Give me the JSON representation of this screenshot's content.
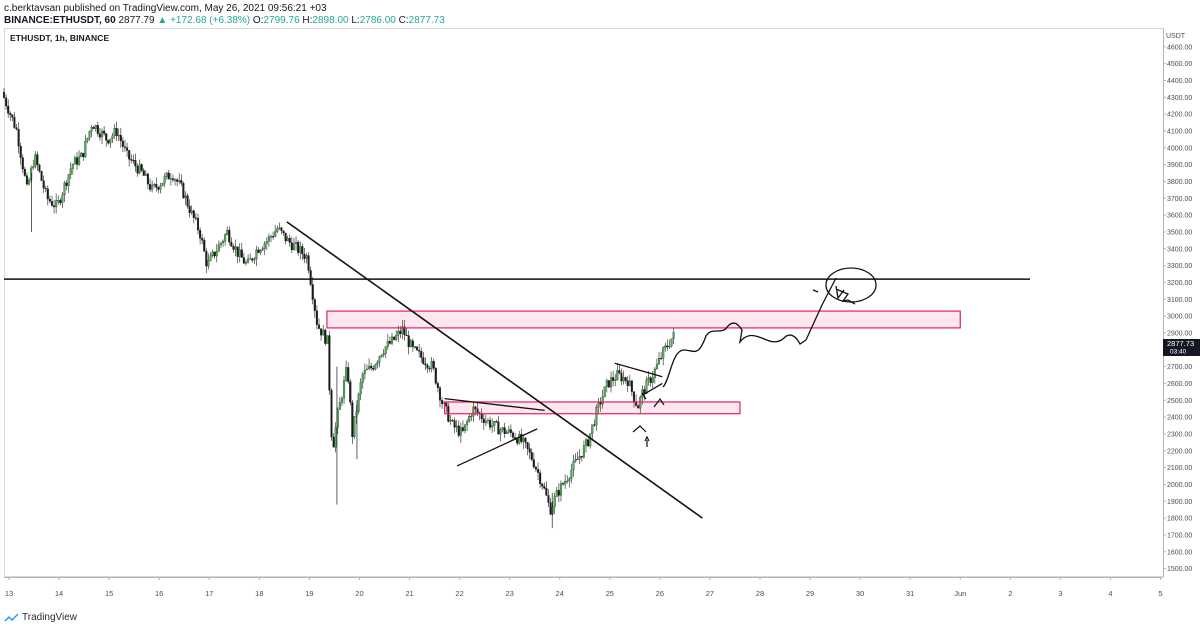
{
  "header": {
    "author": "c.berktavsan",
    "published": "published on TradingView.com, May 26, 2021 09:56:21 +03",
    "symbol_line": "BINANCE:ETHUSDT, 60",
    "last": "2877.79",
    "change": "▲ +172.68 (+6.38%)",
    "o_label": "O:",
    "o": "2799.76",
    "h_label": "H:",
    "h": "2898.00",
    "l_label": "L:",
    "l": "2786.00",
    "c_label": "C:",
    "c": "2877.73"
  },
  "symbol_label": "ETHUSDT, 1h, BINANCE",
  "footer": {
    "brand": "TradingView"
  },
  "colors": {
    "up": "#26a69a",
    "zone": "#e91e63",
    "candle_up": "#4caf50",
    "candle_down": "#1b1b1b"
  },
  "chart_data": {
    "type": "candlestick",
    "currency": "USDT",
    "ylim": [
      1450,
      4700
    ],
    "y_ticks": [
      1500,
      1600,
      1700,
      1800,
      1900,
      2000,
      2100,
      2200,
      2300,
      2400,
      2500,
      2600,
      2700,
      2800,
      2900,
      3000,
      3100,
      3200,
      3300,
      3400,
      3500,
      3600,
      3700,
      3800,
      3900,
      4000,
      4100,
      4200,
      4300,
      4400,
      4500,
      4600
    ],
    "x_ticks": [
      "13",
      "14",
      "15",
      "16",
      "17",
      "18",
      "19",
      "20",
      "21",
      "22",
      "23",
      "24",
      "25",
      "26",
      "27",
      "28",
      "29",
      "30",
      "31",
      "Jun",
      "2",
      "3",
      "4",
      "5"
    ],
    "x_tick_days": [
      13,
      14,
      15,
      16,
      17,
      18,
      19,
      20,
      21,
      22,
      23,
      24,
      25,
      26,
      27,
      28,
      29,
      30,
      31,
      32,
      33,
      34,
      35,
      36
    ],
    "xlim": [
      12.9,
      36.05
    ],
    "last_price_label": "2877.73",
    "countdown_label": "03:40",
    "price_path": [
      [
        12.9,
        4330
      ],
      [
        13.2,
        4100
      ],
      [
        13.4,
        3750
      ],
      [
        13.55,
        3950
      ],
      [
        13.8,
        3700
      ],
      [
        14.0,
        3650
      ],
      [
        14.3,
        3900
      ],
      [
        14.5,
        3950
      ],
      [
        14.7,
        4150
      ],
      [
        14.85,
        4100
      ],
      [
        15.0,
        4050
      ],
      [
        15.2,
        4100
      ],
      [
        15.4,
        3950
      ],
      [
        15.7,
        3850
      ],
      [
        15.9,
        3750
      ],
      [
        16.1,
        3800
      ],
      [
        16.3,
        3850
      ],
      [
        16.5,
        3750
      ],
      [
        16.7,
        3600
      ],
      [
        16.85,
        3500
      ],
      [
        17.0,
        3300
      ],
      [
        17.2,
        3400
      ],
      [
        17.4,
        3500
      ],
      [
        17.6,
        3380
      ],
      [
        17.8,
        3300
      ],
      [
        18.0,
        3400
      ],
      [
        18.2,
        3450
      ],
      [
        18.4,
        3520
      ],
      [
        18.6,
        3450
      ],
      [
        18.8,
        3400
      ],
      [
        19.0,
        3350
      ],
      [
        19.2,
        2950
      ],
      [
        19.4,
        2850
      ],
      [
        19.5,
        2200
      ],
      [
        19.6,
        2400
      ],
      [
        19.8,
        2700
      ],
      [
        19.9,
        2300
      ],
      [
        20.1,
        2650
      ],
      [
        20.3,
        2700
      ],
      [
        20.5,
        2800
      ],
      [
        20.7,
        2850
      ],
      [
        20.9,
        2920
      ],
      [
        21.1,
        2800
      ],
      [
        21.3,
        2750
      ],
      [
        21.5,
        2700
      ],
      [
        21.7,
        2480
      ],
      [
        21.9,
        2350
      ],
      [
        22.1,
        2300
      ],
      [
        22.3,
        2450
      ],
      [
        22.5,
        2400
      ],
      [
        22.7,
        2350
      ],
      [
        22.9,
        2320
      ],
      [
        23.1,
        2300
      ],
      [
        23.3,
        2250
      ],
      [
        23.5,
        2150
      ],
      [
        23.7,
        2000
      ],
      [
        23.85,
        1850
      ],
      [
        24.0,
        1950
      ],
      [
        24.2,
        2050
      ],
      [
        24.4,
        2150
      ],
      [
        24.6,
        2250
      ],
      [
        24.8,
        2450
      ],
      [
        25.0,
        2600
      ],
      [
        25.2,
        2650
      ],
      [
        25.4,
        2620
      ],
      [
        25.6,
        2460
      ],
      [
        25.7,
        2550
      ],
      [
        25.9,
        2650
      ],
      [
        26.1,
        2780
      ],
      [
        26.3,
        2880
      ]
    ],
    "annotations": {
      "horizontal_line": {
        "price": 3220
      },
      "supply_zone": {
        "from_day": 19.35,
        "to_day": 32.0,
        "price_top": 3030,
        "price_bottom": 2930
      },
      "demand_zone": {
        "from_day": 21.7,
        "to_day": 27.6,
        "price_top": 2490,
        "price_bottom": 2420
      },
      "trendline": {
        "from": [
          18.55,
          3560
        ],
        "to": [
          26.85,
          1800
        ]
      },
      "triangle_upper": {
        "from": [
          21.7,
          2510
        ],
        "to": [
          23.7,
          2440
        ]
      },
      "triangle_lower": {
        "from": [
          21.95,
          2110
        ],
        "to": [
          23.55,
          2330
        ]
      },
      "flag_upper": {
        "from": [
          25.1,
          2720
        ],
        "to": [
          26.05,
          2640
        ]
      },
      "flag_lower": {
        "from": [
          25.65,
          2530
        ],
        "to": [
          26.05,
          2600
        ]
      }
    }
  }
}
